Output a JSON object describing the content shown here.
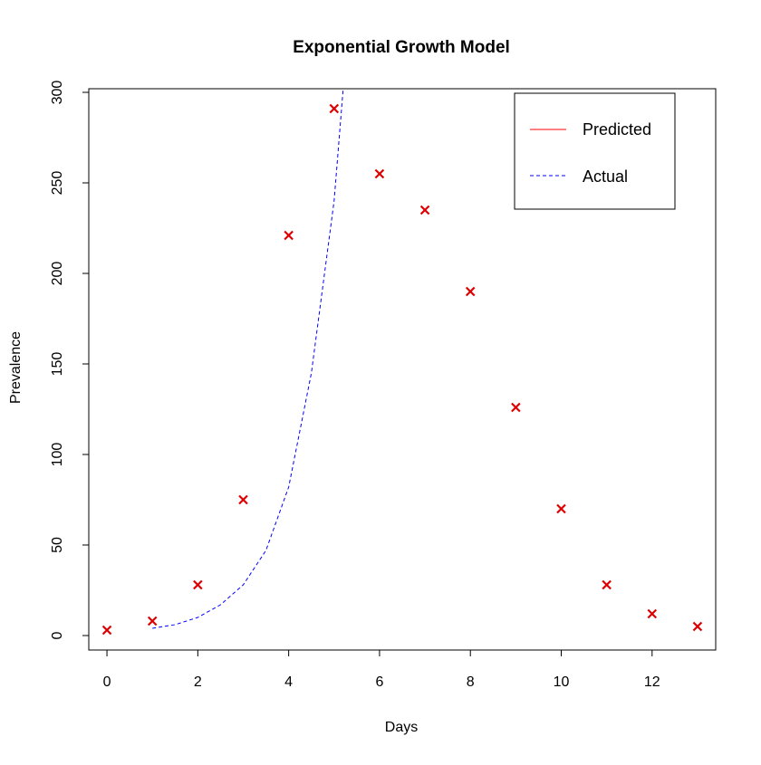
{
  "chart_data": {
    "type": "scatter",
    "title": "Exponential Growth Model",
    "xlabel": "Days",
    "ylabel": "Prevalence",
    "xlim": [
      -0.4,
      13.4
    ],
    "ylim": [
      -8,
      302
    ],
    "x_ticks": [
      0,
      2,
      4,
      6,
      8,
      10,
      12
    ],
    "y_ticks": [
      0,
      50,
      100,
      150,
      200,
      250,
      300
    ],
    "grid": false,
    "legend_position": "top-right",
    "legend": [
      {
        "label": "Predicted",
        "color": "#ff0000",
        "style": "solid"
      },
      {
        "label": "Actual",
        "color": "#0000ff",
        "style": "dashed"
      }
    ],
    "series": [
      {
        "kind": "points",
        "marker": "x",
        "color": "#dd0000",
        "x": [
          0,
          1,
          2,
          3,
          4,
          5,
          6,
          7,
          8,
          9,
          10,
          11,
          12,
          13
        ],
        "y": [
          3,
          8,
          28,
          75,
          221,
          291,
          255,
          235,
          190,
          126,
          70,
          28,
          12,
          5
        ]
      },
      {
        "kind": "curve",
        "style": "dashed",
        "color": "#0000ff",
        "x": [
          1.0,
          1.5,
          2.0,
          2.5,
          3.0,
          3.5,
          4.0,
          4.5,
          5.0,
          5.2
        ],
        "y": [
          4,
          6,
          10,
          17,
          28,
          47,
          82,
          145,
          240,
          302
        ]
      }
    ]
  }
}
